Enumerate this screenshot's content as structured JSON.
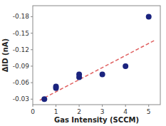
{
  "chart_data": {
    "type": "scatter",
    "xlabel": "Gas Intensity (SCCM)",
    "ylabel": "ΔID (nA)",
    "series": [
      {
        "type": "scatter",
        "marker": "circle",
        "color": "#1a237e",
        "x": [
          0.5,
          1.0,
          1.0,
          2.0,
          2.0,
          3.0,
          4.0,
          5.0
        ],
        "values": [
          -0.03,
          -0.05,
          -0.053,
          -0.07,
          -0.075,
          -0.075,
          -0.09,
          -0.18
        ]
      },
      {
        "type": "line",
        "line_style": "dashed",
        "color": "#e06060",
        "x": [
          0.3,
          5.3
        ],
        "values": [
          -0.028,
          -0.138
        ]
      }
    ],
    "xlim": [
      0,
      5.5
    ],
    "ylim": [
      -0.02,
      -0.2
    ],
    "xticks": [
      0,
      1,
      2,
      3,
      4,
      5
    ],
    "yticks": [
      -0.18,
      -0.15,
      -0.12,
      -0.09,
      -0.06,
      -0.03
    ],
    "grid": false
  }
}
